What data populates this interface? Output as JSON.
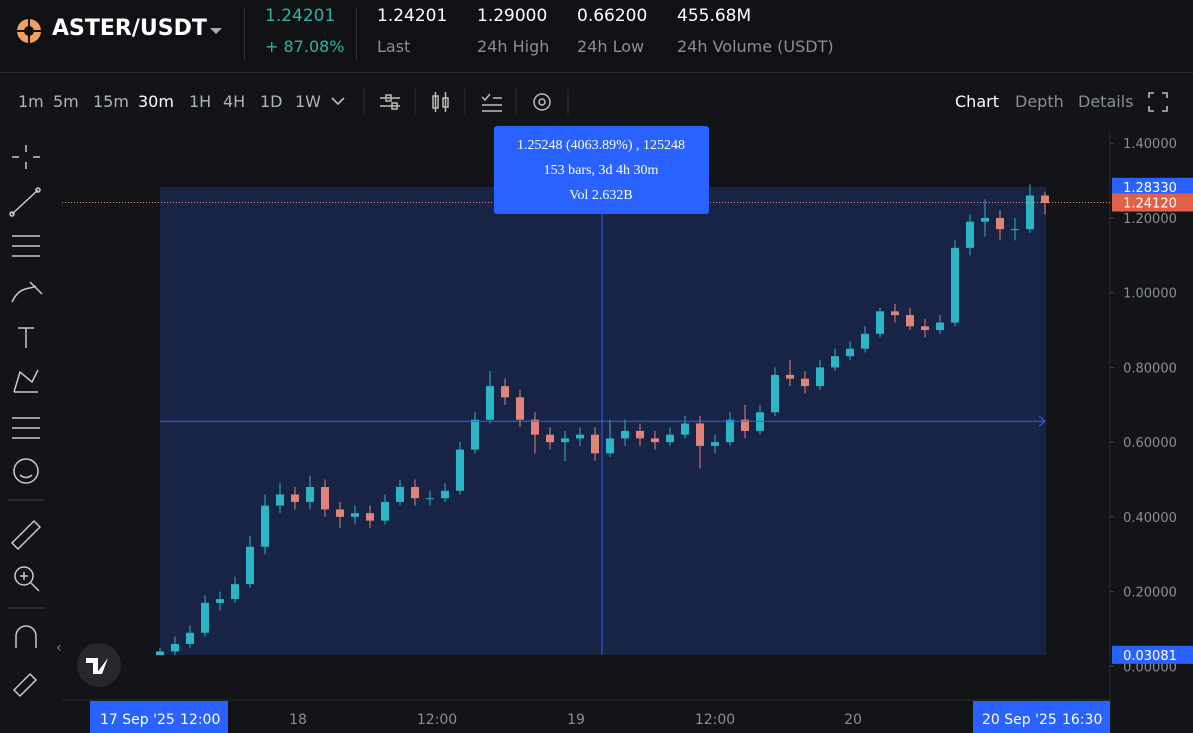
{
  "header": {
    "pair": "ASTER/USDT",
    "price": "1.24201",
    "change": "+ 87.08%",
    "stats": [
      {
        "value": "1.24201",
        "label": "Last"
      },
      {
        "value": "1.29000",
        "label": "24h High"
      },
      {
        "value": "0.66200",
        "label": "24h Low"
      },
      {
        "value": "455.68M",
        "label": "24h Volume (USDT)"
      }
    ]
  },
  "toolbar": {
    "intervals": [
      "1m",
      "5m",
      "15m",
      "30m",
      "1H",
      "4H",
      "1D",
      "1W"
    ],
    "active_interval": 3,
    "views": [
      "Chart",
      "Depth",
      "Details"
    ],
    "active_view": 0
  },
  "chart_data": {
    "type": "candlestick",
    "up_color": "#2bb5c5",
    "down_color": "#e0847a",
    "open": [
      0.03,
      0.04,
      0.06,
      0.09,
      0.17,
      0.18,
      0.22,
      0.32,
      0.43,
      0.46,
      0.44,
      0.48,
      0.42,
      0.4,
      0.41,
      0.39,
      0.44,
      0.48,
      0.45,
      0.45,
      0.47,
      0.58,
      0.66,
      0.75,
      0.72,
      0.66,
      0.62,
      0.6,
      0.61,
      0.62,
      0.57,
      0.61,
      0.63,
      0.61,
      0.6,
      0.62,
      0.65,
      0.59,
      0.6,
      0.66,
      0.63,
      0.68,
      0.78,
      0.77,
      0.75,
      0.8,
      0.83,
      0.85,
      0.89,
      0.95,
      0.94,
      0.91,
      0.9,
      0.92,
      1.12,
      1.19,
      1.2,
      1.17,
      1.17,
      1.26
    ],
    "high": [
      0.05,
      0.08,
      0.11,
      0.19,
      0.2,
      0.24,
      0.35,
      0.46,
      0.49,
      0.48,
      0.51,
      0.5,
      0.44,
      0.43,
      0.43,
      0.46,
      0.5,
      0.5,
      0.47,
      0.49,
      0.6,
      0.68,
      0.79,
      0.77,
      0.74,
      0.68,
      0.64,
      0.63,
      0.64,
      0.64,
      0.66,
      0.66,
      0.65,
      0.63,
      0.64,
      0.67,
      0.67,
      0.62,
      0.68,
      0.7,
      0.7,
      0.8,
      0.82,
      0.79,
      0.82,
      0.85,
      0.87,
      0.91,
      0.96,
      0.97,
      0.96,
      0.93,
      0.94,
      1.14,
      1.21,
      1.25,
      1.22,
      1.2,
      1.29,
      1.27
    ],
    "low": [
      0.03,
      0.03,
      0.05,
      0.08,
      0.15,
      0.17,
      0.21,
      0.3,
      0.41,
      0.42,
      0.42,
      0.4,
      0.37,
      0.38,
      0.37,
      0.38,
      0.43,
      0.43,
      0.43,
      0.44,
      0.46,
      0.57,
      0.65,
      0.7,
      0.64,
      0.57,
      0.58,
      0.55,
      0.59,
      0.55,
      0.56,
      0.59,
      0.59,
      0.58,
      0.59,
      0.61,
      0.53,
      0.57,
      0.59,
      0.61,
      0.62,
      0.67,
      0.75,
      0.73,
      0.74,
      0.79,
      0.82,
      0.84,
      0.88,
      0.92,
      0.9,
      0.88,
      0.89,
      0.91,
      1.1,
      1.15,
      1.14,
      1.14,
      1.16,
      1.21
    ],
    "close": [
      0.04,
      0.06,
      0.09,
      0.17,
      0.18,
      0.22,
      0.32,
      0.43,
      0.46,
      0.44,
      0.48,
      0.42,
      0.4,
      0.41,
      0.39,
      0.44,
      0.48,
      0.45,
      0.45,
      0.47,
      0.58,
      0.66,
      0.75,
      0.72,
      0.66,
      0.62,
      0.6,
      0.61,
      0.62,
      0.57,
      0.61,
      0.63,
      0.61,
      0.6,
      0.62,
      0.65,
      0.59,
      0.6,
      0.66,
      0.63,
      0.68,
      0.78,
      0.77,
      0.75,
      0.8,
      0.83,
      0.85,
      0.89,
      0.95,
      0.94,
      0.91,
      0.9,
      0.92,
      1.12,
      1.19,
      1.2,
      1.17,
      1.17,
      1.26,
      1.24
    ],
    "ylim": [
      -0.09,
      1.43
    ],
    "yticks": [
      {
        "value": 1.4,
        "label": "1.40000"
      },
      {
        "value": 1.2,
        "label": "1.20000"
      },
      {
        "value": 1.0,
        "label": "1.00000"
      },
      {
        "value": 0.8,
        "label": "0.80000"
      },
      {
        "value": 0.6,
        "label": "0.60000"
      },
      {
        "value": 0.4,
        "label": "0.40000"
      },
      {
        "value": 0.2,
        "label": "0.20000"
      },
      {
        "value": 0,
        "label": "0.00000"
      }
    ],
    "time_labels": [
      "18",
      "12:00",
      "19",
      "12:00",
      "20"
    ],
    "range_start": {
      "date": "17 Sep '25",
      "time": "12:00"
    },
    "range_end": {
      "date": "20 Sep '25",
      "time": "16:30"
    },
    "selection_high": {
      "value": 1.2833,
      "label": "1.28330"
    },
    "selection_low": {
      "value": 0.03081,
      "label": "0.03081"
    },
    "last_price": {
      "value": 1.2412,
      "label": "1.24120"
    },
    "crosshair_price": 0.656,
    "tooltip": [
      "1.25248 (4063.89%) , 125248",
      "153 bars, 3d 4h 30m",
      "Vol 2.632B"
    ]
  }
}
